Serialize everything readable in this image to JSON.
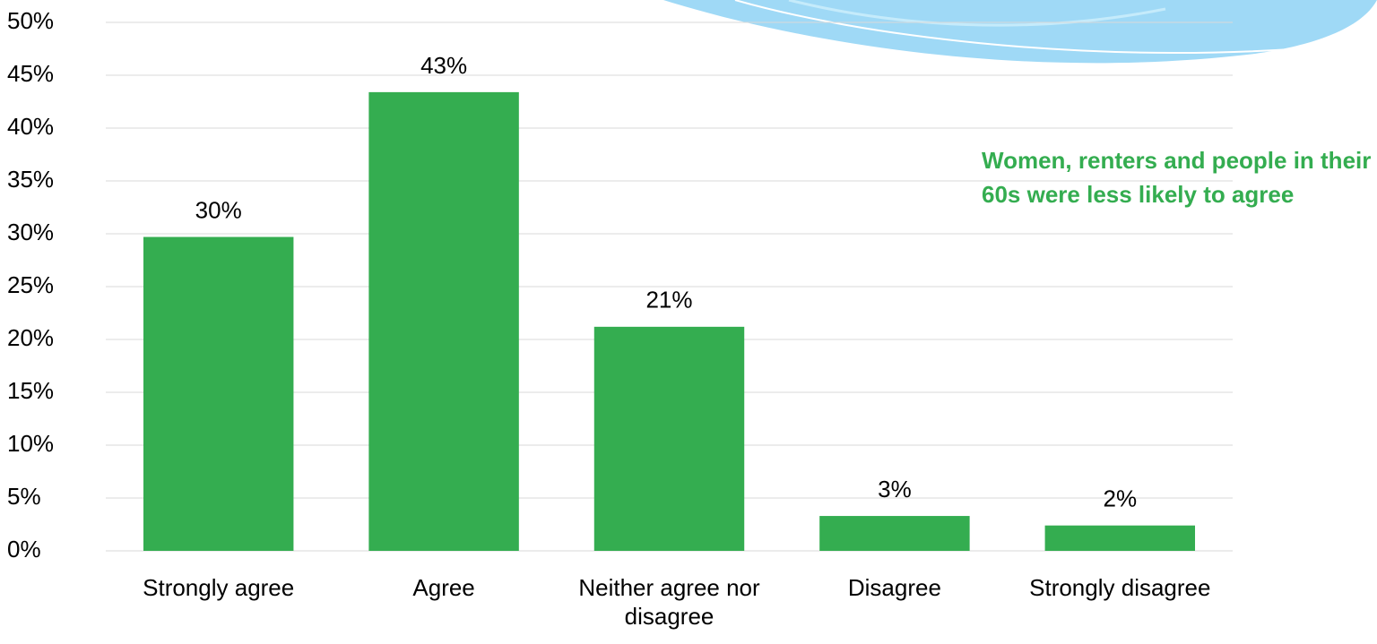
{
  "chart_data": {
    "type": "bar",
    "categories": [
      "Strongly agree",
      "Agree",
      "Neither agree nor disagree",
      "Disagree",
      "Strongly disagree"
    ],
    "values": [
      29.7,
      43.4,
      21.2,
      3.3,
      2.4
    ],
    "value_labels": [
      "30%",
      "43%",
      "21%",
      "3%",
      "2%"
    ],
    "color": "#34ad50",
    "ylim": [
      0,
      50
    ],
    "yticks": [
      {
        "value": 0,
        "label": "0%"
      },
      {
        "value": 5,
        "label": "5%"
      },
      {
        "value": 10,
        "label": "10%"
      },
      {
        "value": 15,
        "label": "15%"
      },
      {
        "value": 20,
        "label": "20%"
      },
      {
        "value": 25,
        "label": "25%"
      },
      {
        "value": 30,
        "label": "30%"
      },
      {
        "value": 35,
        "label": "35%"
      },
      {
        "value": 40,
        "label": "40%"
      },
      {
        "value": 45,
        "label": "45%"
      },
      {
        "value": 50,
        "label": "50%"
      }
    ],
    "grid": true,
    "annotation": "Women, renters and people in their 60s were less likely to agree"
  }
}
